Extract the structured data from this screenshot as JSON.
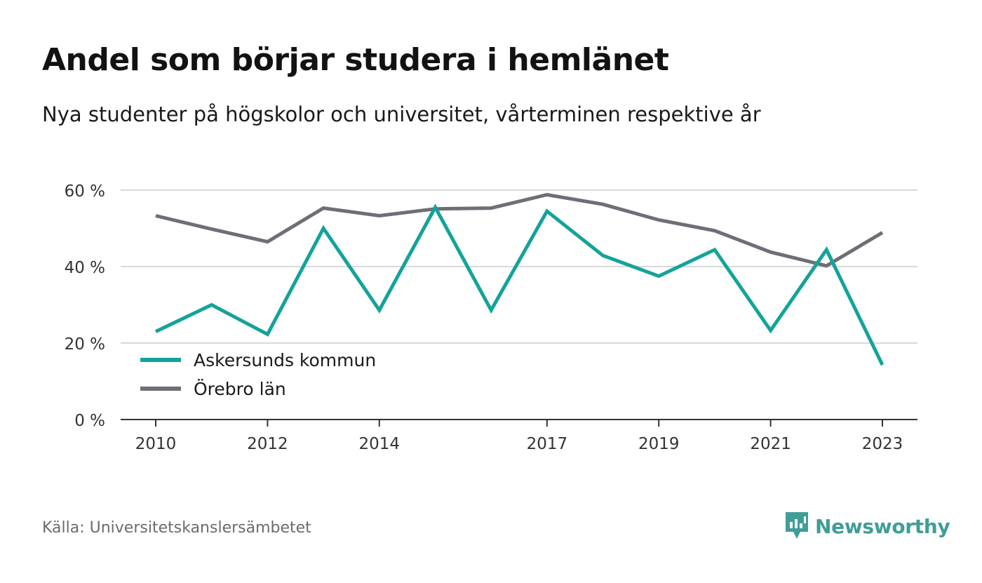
{
  "title": "Andel som börjar studera i hemlänet",
  "subtitle": "Nya studenter på högskolor och universitet, vårterminen respektive år",
  "source": "Källa: Universitetskanslersämbetet",
  "brand": "Newsworthy",
  "colors": {
    "askersund": "#13a39a",
    "orebro": "#6f6e77",
    "grid": "#d9d9d9",
    "axis": "#333333",
    "brand": "#3f9e96"
  },
  "chart_data": {
    "type": "line",
    "x": [
      2010,
      2011,
      2012,
      2013,
      2014,
      2015,
      2016,
      2017,
      2018,
      2019,
      2020,
      2021,
      2022,
      2023
    ],
    "x_ticks": [
      "2010",
      "2012",
      "2014",
      "2017",
      "2019",
      "2021",
      "2023"
    ],
    "y_ticks": [
      "0 %",
      "20 %",
      "40 %",
      "60 %"
    ],
    "ylim": [
      0,
      60
    ],
    "legend_position": "bottom-left",
    "grid": true,
    "series": [
      {
        "name": "Askersunds kommun",
        "values": [
          23,
          30,
          22.3,
          50,
          28.6,
          55.5,
          28.6,
          54.5,
          42.9,
          37.5,
          44.4,
          23.3,
          44.4,
          14.3
        ]
      },
      {
        "name": "Örebro län",
        "values": [
          53.3,
          49.8,
          46.5,
          55.3,
          53.3,
          55.1,
          55.3,
          58.8,
          56.3,
          52.2,
          49.4,
          43.8,
          40.2,
          48.9
        ]
      }
    ]
  }
}
